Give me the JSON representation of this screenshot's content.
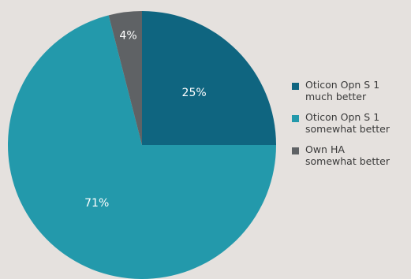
{
  "chart_data": {
    "type": "pie",
    "title": "",
    "slices": [
      {
        "label_lines": [
          "Oticon Opn S 1",
          "much better"
        ],
        "value": 25,
        "value_label": "25%",
        "color": "#0f6580"
      },
      {
        "label_lines": [
          "Oticon Opn S 1",
          "somewhat better"
        ],
        "value": 71,
        "value_label": "71%",
        "color": "#2399ab"
      },
      {
        "label_lines": [
          "Own HA",
          "somewhat better"
        ],
        "value": 4,
        "value_label": "4%",
        "color": "#5f6265"
      }
    ],
    "legend_position": "right",
    "background": "#e5e1de"
  }
}
